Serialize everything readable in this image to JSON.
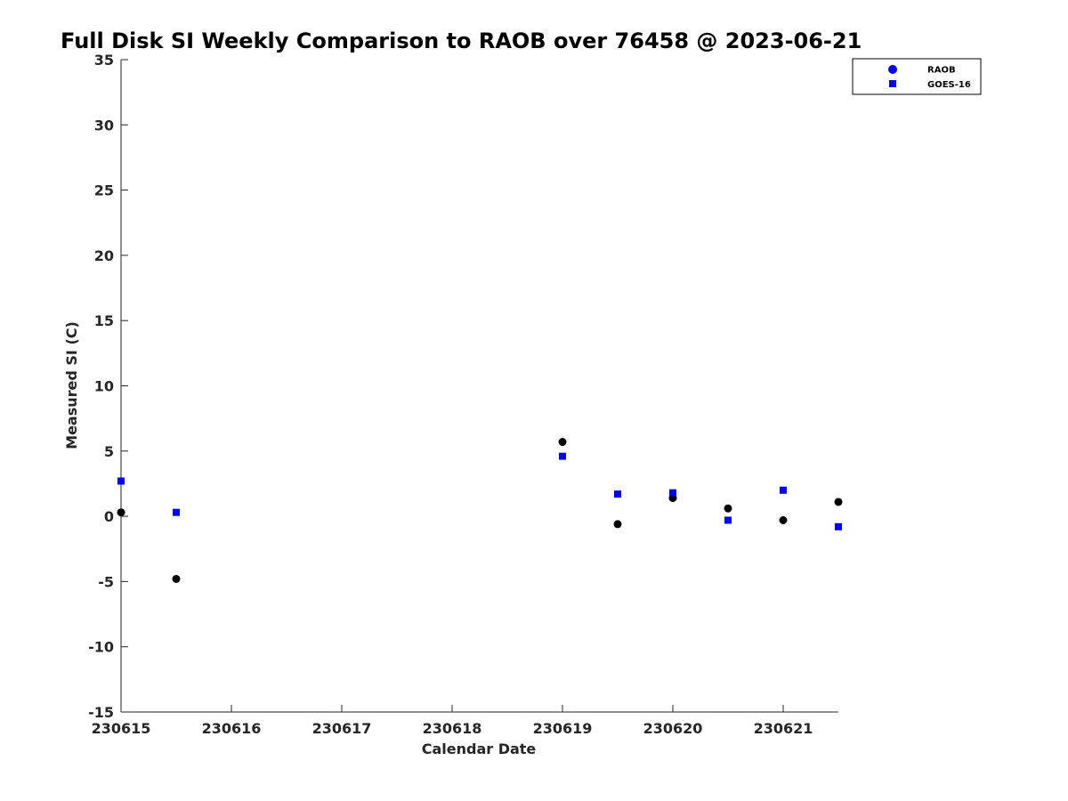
{
  "chart_data": {
    "type": "scatter",
    "title": "Full Disk SI Weekly Comparison to RAOB over 76458 @ 2023-06-21",
    "xlabel": "Calendar Date",
    "ylabel": "Measured SI (C)",
    "x_ticks": [
      "230615",
      "230616",
      "230617",
      "230618",
      "230619",
      "230620",
      "230621"
    ],
    "y_ticks": [
      "35",
      "30",
      "25",
      "20",
      "15",
      "10",
      "5",
      "0",
      "-5",
      "-10",
      "-15"
    ],
    "ylim": [
      -15,
      35
    ],
    "xlim": [
      "2023-06-15T00:00",
      "2023-06-21T12:00"
    ],
    "grid": false,
    "legend_position": "top-right",
    "series": [
      {
        "name": "RAOB",
        "marker": "circle",
        "color": "#000000",
        "legend_color": "#0000ff",
        "points": [
          {
            "x": "2023-06-15T00:00",
            "y": 0.3
          },
          {
            "x": "2023-06-15T12:00",
            "y": -4.8
          },
          {
            "x": "2023-06-19T00:00",
            "y": 5.7
          },
          {
            "x": "2023-06-19T12:00",
            "y": -0.6
          },
          {
            "x": "2023-06-20T00:00",
            "y": 1.4
          },
          {
            "x": "2023-06-20T12:00",
            "y": 0.6
          },
          {
            "x": "2023-06-21T00:00",
            "y": -0.3
          },
          {
            "x": "2023-06-21T12:00",
            "y": 1.1
          }
        ]
      },
      {
        "name": "GOES-16",
        "marker": "square",
        "color": "#0000ff",
        "legend_color": "#0000ff",
        "points": [
          {
            "x": "2023-06-15T00:00",
            "y": 2.7
          },
          {
            "x": "2023-06-15T12:00",
            "y": 0.3
          },
          {
            "x": "2023-06-19T00:00",
            "y": 4.6
          },
          {
            "x": "2023-06-19T12:00",
            "y": 1.7
          },
          {
            "x": "2023-06-20T00:00",
            "y": 1.8
          },
          {
            "x": "2023-06-20T12:00",
            "y": -0.3
          },
          {
            "x": "2023-06-21T00:00",
            "y": 2.0
          },
          {
            "x": "2023-06-21T12:00",
            "y": -0.8
          }
        ]
      }
    ]
  }
}
